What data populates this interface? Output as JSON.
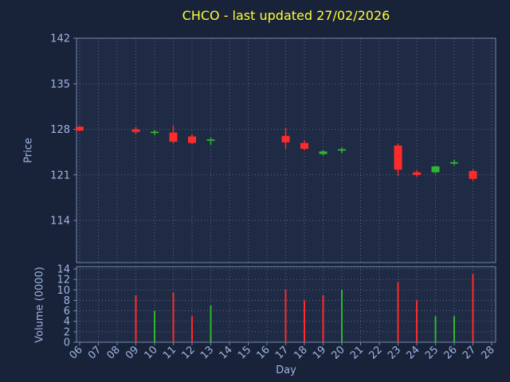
{
  "title": "CHCO - last updated 27/02/2026",
  "colors": {
    "background": "#182238",
    "panel": "#1f2a44",
    "grid": "#a8b8d8",
    "spine": "#7487ad",
    "text": "#9fb6e2",
    "title": "#ffff33",
    "up": "#2db82d",
    "down": "#ff2a2a"
  },
  "price_axis": {
    "label": "Price",
    "ticks": [
      142,
      135,
      128,
      121,
      114
    ],
    "min": 107.5,
    "max": 142
  },
  "volume_axis": {
    "label": "Volume (0000)",
    "ticks": [
      14,
      12,
      10,
      8,
      6,
      4,
      2,
      0
    ],
    "min": 0,
    "max": 14
  },
  "x_axis": {
    "label": "Day",
    "ticks": [
      "06",
      "07",
      "08",
      "09",
      "10",
      "11",
      "12",
      "13",
      "14",
      "15",
      "16",
      "17",
      "18",
      "19",
      "20",
      "21",
      "22",
      "23",
      "24",
      "25",
      "26",
      "27",
      "28"
    ]
  },
  "chart_data": {
    "type": "candlestick",
    "title": "CHCO - last updated 27/02/2026",
    "xlabel": "Day",
    "ylabel_price": "Price",
    "ylabel_volume": "Volume (0000)",
    "price_ylim": [
      107.5,
      142
    ],
    "volume_ylim": [
      0,
      14
    ],
    "grid": "dotted",
    "candles": [
      {
        "day": 6,
        "open": 128.4,
        "high": 128.5,
        "low": 127.7,
        "close": 127.8,
        "volume": 0
      },
      {
        "day": 9,
        "open": 128.0,
        "high": 128.4,
        "low": 127.3,
        "close": 127.6,
        "volume": 9
      },
      {
        "day": 10,
        "open": 127.55,
        "high": 127.9,
        "low": 127.1,
        "close": 127.65,
        "volume": 6
      },
      {
        "day": 11,
        "open": 127.5,
        "high": 128.6,
        "low": 125.9,
        "close": 126.1,
        "volume": 9.5
      },
      {
        "day": 12,
        "open": 126.9,
        "high": 127.2,
        "low": 125.7,
        "close": 125.9,
        "volume": 5
      },
      {
        "day": 13,
        "open": 126.35,
        "high": 126.7,
        "low": 125.6,
        "close": 126.45,
        "volume": 7
      },
      {
        "day": 17,
        "open": 127.0,
        "high": 128.2,
        "low": 125.0,
        "close": 126.0,
        "volume": 10
      },
      {
        "day": 18,
        "open": 125.9,
        "high": 126.3,
        "low": 124.8,
        "close": 125.0,
        "volume": 8
      },
      {
        "day": 19,
        "open": 124.2,
        "high": 124.8,
        "low": 124.0,
        "close": 124.6,
        "volume": 9
      },
      {
        "day": 20,
        "open": 124.85,
        "high": 125.2,
        "low": 124.3,
        "close": 124.95,
        "volume": 10
      },
      {
        "day": 23,
        "open": 125.5,
        "high": 125.8,
        "low": 120.8,
        "close": 121.8,
        "volume": 11.5
      },
      {
        "day": 24,
        "open": 121.4,
        "high": 121.7,
        "low": 120.7,
        "close": 121.0,
        "volume": 8
      },
      {
        "day": 25,
        "open": 121.4,
        "high": 122.4,
        "low": 121.2,
        "close": 122.3,
        "volume": 5
      },
      {
        "day": 26,
        "open": 122.85,
        "high": 123.3,
        "low": 122.5,
        "close": 122.95,
        "volume": 5
      },
      {
        "day": 27,
        "open": 121.6,
        "high": 121.8,
        "low": 120.1,
        "close": 120.4,
        "volume": 13
      }
    ]
  }
}
